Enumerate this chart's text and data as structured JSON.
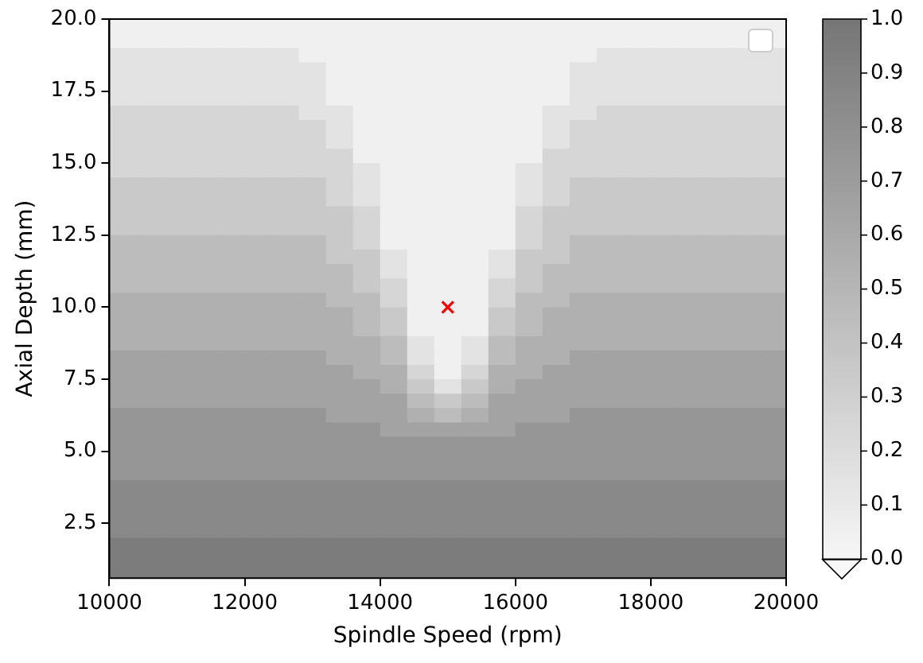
{
  "chart_data": {
    "type": "heatmap",
    "xlabel": "Spindle Speed (rpm)",
    "ylabel": "Axial Depth (mm)",
    "x": [
      10200,
      10600,
      11000,
      11400,
      11800,
      12200,
      12600,
      13000,
      13400,
      13800,
      14200,
      14600,
      15000,
      15400,
      15800,
      16200,
      16600,
      17000,
      17400,
      17800,
      18200,
      18600,
      19000,
      19400,
      19800
    ],
    "y": [
      19.75,
      19.25,
      18.75,
      18.25,
      17.75,
      17.25,
      16.75,
      16.25,
      15.75,
      15.25,
      14.75,
      14.25,
      13.75,
      13.25,
      12.75,
      12.25,
      11.75,
      11.25,
      10.75,
      10.25,
      9.75,
      9.25,
      8.75,
      8.25,
      7.75,
      7.25,
      6.75,
      6.25,
      5.75,
      5.25,
      4.75,
      4.25,
      3.75,
      3.25,
      2.75,
      2.25,
      1.75,
      1.25,
      0.75
    ],
    "cells": [
      [
        0.05,
        0.05,
        0.05,
        0.05,
        0.05,
        0.05,
        0.05,
        0.05,
        0.05,
        0.05,
        0.05,
        0.05,
        0.05,
        0.05,
        0.05,
        0.05,
        0.05,
        0.05,
        0.05,
        0.05,
        0.05,
        0.05,
        0.05,
        0.05,
        0.05
      ],
      [
        0.05,
        0.05,
        0.05,
        0.05,
        0.05,
        0.05,
        0.05,
        0.05,
        0.05,
        0.05,
        0.05,
        0.05,
        0.05,
        0.05,
        0.05,
        0.05,
        0.05,
        0.05,
        0.05,
        0.05,
        0.05,
        0.05,
        0.05,
        0.05,
        0.05
      ],
      [
        0.15,
        0.15,
        0.15,
        0.15,
        0.15,
        0.15,
        0.15,
        0.05,
        0.05,
        0.05,
        0.05,
        0.05,
        0.05,
        0.05,
        0.05,
        0.05,
        0.05,
        0.05,
        0.15,
        0.15,
        0.15,
        0.15,
        0.15,
        0.15,
        0.15
      ],
      [
        0.15,
        0.15,
        0.15,
        0.15,
        0.15,
        0.15,
        0.15,
        0.15,
        0.05,
        0.05,
        0.05,
        0.05,
        0.05,
        0.05,
        0.05,
        0.05,
        0.05,
        0.15,
        0.15,
        0.15,
        0.15,
        0.15,
        0.15,
        0.15,
        0.15
      ],
      [
        0.15,
        0.15,
        0.15,
        0.15,
        0.15,
        0.15,
        0.15,
        0.15,
        0.05,
        0.05,
        0.05,
        0.05,
        0.05,
        0.05,
        0.05,
        0.05,
        0.05,
        0.15,
        0.15,
        0.15,
        0.15,
        0.15,
        0.15,
        0.15,
        0.15
      ],
      [
        0.15,
        0.15,
        0.15,
        0.15,
        0.15,
        0.15,
        0.15,
        0.15,
        0.05,
        0.05,
        0.05,
        0.05,
        0.05,
        0.05,
        0.05,
        0.05,
        0.05,
        0.15,
        0.15,
        0.15,
        0.15,
        0.15,
        0.15,
        0.15,
        0.15
      ],
      [
        0.25,
        0.25,
        0.25,
        0.25,
        0.25,
        0.25,
        0.25,
        0.15,
        0.15,
        0.05,
        0.05,
        0.05,
        0.05,
        0.05,
        0.05,
        0.05,
        0.15,
        0.15,
        0.25,
        0.25,
        0.25,
        0.25,
        0.25,
        0.25,
        0.25
      ],
      [
        0.25,
        0.25,
        0.25,
        0.25,
        0.25,
        0.25,
        0.25,
        0.25,
        0.15,
        0.05,
        0.05,
        0.05,
        0.05,
        0.05,
        0.05,
        0.05,
        0.15,
        0.25,
        0.25,
        0.25,
        0.25,
        0.25,
        0.25,
        0.25,
        0.25
      ],
      [
        0.25,
        0.25,
        0.25,
        0.25,
        0.25,
        0.25,
        0.25,
        0.25,
        0.15,
        0.05,
        0.05,
        0.05,
        0.05,
        0.05,
        0.05,
        0.05,
        0.15,
        0.25,
        0.25,
        0.25,
        0.25,
        0.25,
        0.25,
        0.25,
        0.25
      ],
      [
        0.25,
        0.25,
        0.25,
        0.25,
        0.25,
        0.25,
        0.25,
        0.25,
        0.25,
        0.05,
        0.05,
        0.05,
        0.05,
        0.05,
        0.05,
        0.05,
        0.25,
        0.25,
        0.25,
        0.25,
        0.25,
        0.25,
        0.25,
        0.25,
        0.25
      ],
      [
        0.25,
        0.25,
        0.25,
        0.25,
        0.25,
        0.25,
        0.25,
        0.25,
        0.25,
        0.15,
        0.05,
        0.05,
        0.05,
        0.05,
        0.05,
        0.15,
        0.25,
        0.25,
        0.25,
        0.25,
        0.25,
        0.25,
        0.25,
        0.25,
        0.25
      ],
      [
        0.35,
        0.35,
        0.35,
        0.35,
        0.35,
        0.35,
        0.35,
        0.35,
        0.25,
        0.15,
        0.05,
        0.05,
        0.05,
        0.05,
        0.05,
        0.15,
        0.25,
        0.35,
        0.35,
        0.35,
        0.35,
        0.35,
        0.35,
        0.35,
        0.35
      ],
      [
        0.35,
        0.35,
        0.35,
        0.35,
        0.35,
        0.35,
        0.35,
        0.35,
        0.25,
        0.15,
        0.05,
        0.05,
        0.05,
        0.05,
        0.05,
        0.15,
        0.25,
        0.35,
        0.35,
        0.35,
        0.35,
        0.35,
        0.35,
        0.35,
        0.35
      ],
      [
        0.35,
        0.35,
        0.35,
        0.35,
        0.35,
        0.35,
        0.35,
        0.35,
        0.35,
        0.25,
        0.05,
        0.05,
        0.05,
        0.05,
        0.05,
        0.25,
        0.35,
        0.35,
        0.35,
        0.35,
        0.35,
        0.35,
        0.35,
        0.35,
        0.35
      ],
      [
        0.35,
        0.35,
        0.35,
        0.35,
        0.35,
        0.35,
        0.35,
        0.35,
        0.35,
        0.25,
        0.05,
        0.05,
        0.05,
        0.05,
        0.05,
        0.25,
        0.35,
        0.35,
        0.35,
        0.35,
        0.35,
        0.35,
        0.35,
        0.35,
        0.35
      ],
      [
        0.45,
        0.45,
        0.45,
        0.45,
        0.45,
        0.45,
        0.45,
        0.45,
        0.35,
        0.25,
        0.05,
        0.05,
        0.05,
        0.05,
        0.05,
        0.25,
        0.35,
        0.45,
        0.45,
        0.45,
        0.45,
        0.45,
        0.45,
        0.45,
        0.45
      ],
      [
        0.45,
        0.45,
        0.45,
        0.45,
        0.45,
        0.45,
        0.45,
        0.45,
        0.35,
        0.35,
        0.15,
        0.05,
        0.05,
        0.05,
        0.15,
        0.35,
        0.35,
        0.45,
        0.45,
        0.45,
        0.45,
        0.45,
        0.45,
        0.45,
        0.45
      ],
      [
        0.45,
        0.45,
        0.45,
        0.45,
        0.45,
        0.45,
        0.45,
        0.45,
        0.45,
        0.35,
        0.15,
        0.05,
        0.05,
        0.05,
        0.15,
        0.35,
        0.45,
        0.45,
        0.45,
        0.45,
        0.45,
        0.45,
        0.45,
        0.45,
        0.45
      ],
      [
        0.45,
        0.45,
        0.45,
        0.45,
        0.45,
        0.45,
        0.45,
        0.45,
        0.45,
        0.35,
        0.25,
        0.05,
        0.05,
        0.05,
        0.25,
        0.35,
        0.45,
        0.45,
        0.45,
        0.45,
        0.45,
        0.45,
        0.45,
        0.45,
        0.45
      ],
      [
        0.55,
        0.55,
        0.55,
        0.55,
        0.55,
        0.55,
        0.55,
        0.55,
        0.45,
        0.45,
        0.25,
        0.05,
        0.05,
        0.05,
        0.25,
        0.45,
        0.45,
        0.55,
        0.55,
        0.55,
        0.55,
        0.55,
        0.55,
        0.55,
        0.55
      ],
      [
        0.55,
        0.55,
        0.55,
        0.55,
        0.55,
        0.55,
        0.55,
        0.55,
        0.55,
        0.45,
        0.35,
        0.05,
        0.05,
        0.05,
        0.35,
        0.45,
        0.55,
        0.55,
        0.55,
        0.55,
        0.55,
        0.55,
        0.55,
        0.55,
        0.55
      ],
      [
        0.55,
        0.55,
        0.55,
        0.55,
        0.55,
        0.55,
        0.55,
        0.55,
        0.55,
        0.45,
        0.35,
        0.05,
        0.05,
        0.05,
        0.35,
        0.45,
        0.55,
        0.55,
        0.55,
        0.55,
        0.55,
        0.55,
        0.55,
        0.55,
        0.55
      ],
      [
        0.55,
        0.55,
        0.55,
        0.55,
        0.55,
        0.55,
        0.55,
        0.55,
        0.55,
        0.55,
        0.45,
        0.15,
        0.05,
        0.15,
        0.45,
        0.55,
        0.55,
        0.55,
        0.55,
        0.55,
        0.55,
        0.55,
        0.55,
        0.55,
        0.55
      ],
      [
        0.65,
        0.65,
        0.65,
        0.65,
        0.65,
        0.65,
        0.65,
        0.65,
        0.55,
        0.55,
        0.45,
        0.15,
        0.05,
        0.15,
        0.45,
        0.55,
        0.55,
        0.65,
        0.65,
        0.65,
        0.65,
        0.65,
        0.65,
        0.65,
        0.65
      ],
      [
        0.65,
        0.65,
        0.65,
        0.65,
        0.65,
        0.65,
        0.65,
        0.65,
        0.65,
        0.55,
        0.55,
        0.25,
        0.05,
        0.25,
        0.55,
        0.55,
        0.65,
        0.65,
        0.65,
        0.65,
        0.65,
        0.65,
        0.65,
        0.65,
        0.65
      ],
      [
        0.65,
        0.65,
        0.65,
        0.65,
        0.65,
        0.65,
        0.65,
        0.65,
        0.65,
        0.65,
        0.55,
        0.35,
        0.15,
        0.35,
        0.55,
        0.65,
        0.65,
        0.65,
        0.65,
        0.65,
        0.65,
        0.65,
        0.65,
        0.65,
        0.65
      ],
      [
        0.65,
        0.65,
        0.65,
        0.65,
        0.65,
        0.65,
        0.65,
        0.65,
        0.65,
        0.65,
        0.65,
        0.45,
        0.35,
        0.45,
        0.65,
        0.65,
        0.65,
        0.65,
        0.65,
        0.65,
        0.65,
        0.65,
        0.65,
        0.65,
        0.65
      ],
      [
        0.75,
        0.75,
        0.75,
        0.75,
        0.75,
        0.75,
        0.75,
        0.75,
        0.65,
        0.65,
        0.65,
        0.55,
        0.45,
        0.55,
        0.65,
        0.65,
        0.65,
        0.75,
        0.75,
        0.75,
        0.75,
        0.75,
        0.75,
        0.75,
        0.75
      ],
      [
        0.75,
        0.75,
        0.75,
        0.75,
        0.75,
        0.75,
        0.75,
        0.75,
        0.75,
        0.75,
        0.65,
        0.65,
        0.65,
        0.65,
        0.65,
        0.75,
        0.75,
        0.75,
        0.75,
        0.75,
        0.75,
        0.75,
        0.75,
        0.75,
        0.75
      ],
      [
        0.75,
        0.75,
        0.75,
        0.75,
        0.75,
        0.75,
        0.75,
        0.75,
        0.75,
        0.75,
        0.75,
        0.75,
        0.75,
        0.75,
        0.75,
        0.75,
        0.75,
        0.75,
        0.75,
        0.75,
        0.75,
        0.75,
        0.75,
        0.75,
        0.75
      ],
      [
        0.75,
        0.75,
        0.75,
        0.75,
        0.75,
        0.75,
        0.75,
        0.75,
        0.75,
        0.75,
        0.75,
        0.75,
        0.75,
        0.75,
        0.75,
        0.75,
        0.75,
        0.75,
        0.75,
        0.75,
        0.75,
        0.75,
        0.75,
        0.75,
        0.75
      ],
      [
        0.75,
        0.75,
        0.75,
        0.75,
        0.75,
        0.75,
        0.75,
        0.75,
        0.75,
        0.75,
        0.75,
        0.75,
        0.75,
        0.75,
        0.75,
        0.75,
        0.75,
        0.75,
        0.75,
        0.75,
        0.75,
        0.75,
        0.75,
        0.75,
        0.75
      ],
      [
        0.85,
        0.85,
        0.85,
        0.85,
        0.85,
        0.85,
        0.85,
        0.85,
        0.85,
        0.85,
        0.85,
        0.85,
        0.85,
        0.85,
        0.85,
        0.85,
        0.85,
        0.85,
        0.85,
        0.85,
        0.85,
        0.85,
        0.85,
        0.85,
        0.85
      ],
      [
        0.85,
        0.85,
        0.85,
        0.85,
        0.85,
        0.85,
        0.85,
        0.85,
        0.85,
        0.85,
        0.85,
        0.85,
        0.85,
        0.85,
        0.85,
        0.85,
        0.85,
        0.85,
        0.85,
        0.85,
        0.85,
        0.85,
        0.85,
        0.85,
        0.85
      ],
      [
        0.85,
        0.85,
        0.85,
        0.85,
        0.85,
        0.85,
        0.85,
        0.85,
        0.85,
        0.85,
        0.85,
        0.85,
        0.85,
        0.85,
        0.85,
        0.85,
        0.85,
        0.85,
        0.85,
        0.85,
        0.85,
        0.85,
        0.85,
        0.85,
        0.85
      ],
      [
        0.85,
        0.85,
        0.85,
        0.85,
        0.85,
        0.85,
        0.85,
        0.85,
        0.85,
        0.85,
        0.85,
        0.85,
        0.85,
        0.85,
        0.85,
        0.85,
        0.85,
        0.85,
        0.85,
        0.85,
        0.85,
        0.85,
        0.85,
        0.85,
        0.85
      ],
      [
        0.95,
        0.95,
        0.95,
        0.95,
        0.95,
        0.95,
        0.95,
        0.95,
        0.95,
        0.95,
        0.95,
        0.95,
        0.95,
        0.95,
        0.95,
        0.95,
        0.95,
        0.95,
        0.95,
        0.95,
        0.95,
        0.95,
        0.95,
        0.95,
        0.95
      ],
      [
        0.95,
        0.95,
        0.95,
        0.95,
        0.95,
        0.95,
        0.95,
        0.95,
        0.95,
        0.95,
        0.95,
        0.95,
        0.95,
        0.95,
        0.95,
        0.95,
        0.95,
        0.95,
        0.95,
        0.95,
        0.95,
        0.95,
        0.95,
        0.95,
        0.95
      ],
      [
        0.95,
        0.95,
        0.95,
        0.95,
        0.95,
        0.95,
        0.95,
        0.95,
        0.95,
        0.95,
        0.95,
        0.95,
        0.95,
        0.95,
        0.95,
        0.95,
        0.95,
        0.95,
        0.95,
        0.95,
        0.95,
        0.95,
        0.95,
        0.95,
        0.95
      ]
    ],
    "xlim": [
      10000,
      20000
    ],
    "xticks": [
      10000,
      12000,
      14000,
      16000,
      18000,
      20000
    ],
    "ylim": [
      0.6,
      20
    ],
    "yticks": [
      {
        "value": 2.5,
        "label": "2.5"
      },
      {
        "value": 5,
        "label": "5.0"
      },
      {
        "value": 7.5,
        "label": "7.5"
      },
      {
        "value": 10,
        "label": "10.0"
      },
      {
        "value": 12.5,
        "label": "12.5"
      },
      {
        "value": 15,
        "label": "15.0"
      },
      {
        "value": 17.5,
        "label": "17.5"
      },
      {
        "value": 20,
        "label": "20.0"
      }
    ],
    "clim": [
      0,
      1
    ],
    "cticks": [
      {
        "value": 0,
        "label": "0.0"
      },
      {
        "value": 0.1,
        "label": "0.1"
      },
      {
        "value": 0.2,
        "label": "0.2"
      },
      {
        "value": 0.3,
        "label": "0.3"
      },
      {
        "value": 0.4,
        "label": "0.4"
      },
      {
        "value": 0.5,
        "label": "0.5"
      },
      {
        "value": 0.6,
        "label": "0.6"
      },
      {
        "value": 0.7,
        "label": "0.7"
      },
      {
        "value": 0.8,
        "label": "0.8"
      },
      {
        "value": 0.9,
        "label": "0.9"
      },
      {
        "value": 1,
        "label": "1.0"
      }
    ],
    "marker": "cross",
    "series": [
      {
        "type": "scatter",
        "x": [
          15000
        ],
        "values": [
          10
        ],
        "color": "#ff0000"
      }
    ]
  }
}
